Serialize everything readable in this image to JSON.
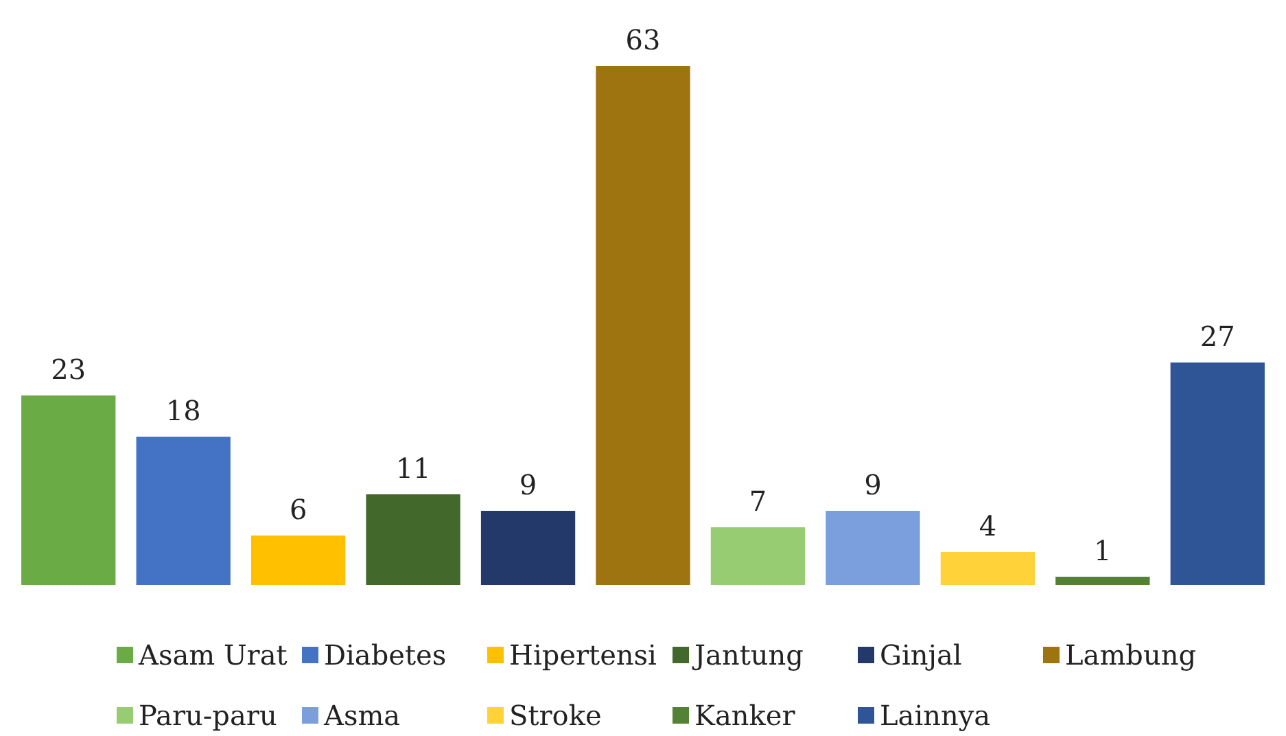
{
  "chart_data": {
    "type": "bar",
    "categories": [
      null,
      null,
      null,
      null,
      null,
      null,
      null,
      null,
      null,
      null,
      null
    ],
    "series": [
      {
        "name": "Asam Urat",
        "color": "#6aab45",
        "values": [
          23,
          null,
          null,
          null,
          null,
          null,
          null,
          null,
          null,
          null,
          null
        ]
      },
      {
        "name": "Diabetes",
        "color": "#4472c4",
        "values": [
          null,
          18,
          null,
          null,
          null,
          null,
          null,
          null,
          null,
          null,
          null
        ]
      },
      {
        "name": "Hipertensi",
        "color": "#ffc000",
        "values": [
          null,
          null,
          6,
          null,
          null,
          null,
          null,
          null,
          null,
          null,
          null
        ]
      },
      {
        "name": "Jantung",
        "color": "#43682b",
        "values": [
          null,
          null,
          null,
          11,
          null,
          null,
          null,
          null,
          null,
          null,
          null
        ]
      },
      {
        "name": "Ginjal",
        "color": "#22396a",
        "values": [
          null,
          null,
          null,
          null,
          9,
          null,
          null,
          null,
          null,
          null,
          null
        ]
      },
      {
        "name": "Lambung",
        "color": "#9e7410",
        "values": [
          null,
          null,
          null,
          null,
          null,
          63,
          null,
          null,
          null,
          null,
          null
        ]
      },
      {
        "name": "Paru-paru",
        "color": "#97cc72",
        "values": [
          null,
          null,
          null,
          null,
          null,
          null,
          7,
          null,
          null,
          null,
          null
        ]
      },
      {
        "name": "Asma",
        "color": "#7a9fdc",
        "values": [
          null,
          null,
          null,
          null,
          null,
          null,
          null,
          9,
          null,
          null,
          null
        ]
      },
      {
        "name": "Stroke",
        "color": "#ffd23a",
        "values": [
          null,
          null,
          null,
          null,
          null,
          null,
          null,
          null,
          4,
          null,
          null
        ]
      },
      {
        "name": "Kanker",
        "color": "#548235",
        "values": [
          null,
          null,
          null,
          null,
          null,
          null,
          null,
          null,
          null,
          1,
          null
        ]
      },
      {
        "name": "Lainnya",
        "color": "#2f5597",
        "values": [
          null,
          null,
          null,
          null,
          null,
          null,
          null,
          null,
          null,
          null,
          27
        ]
      }
    ],
    "data_labels": true,
    "legend": "bottom",
    "stacked": true,
    "grid": false
  }
}
